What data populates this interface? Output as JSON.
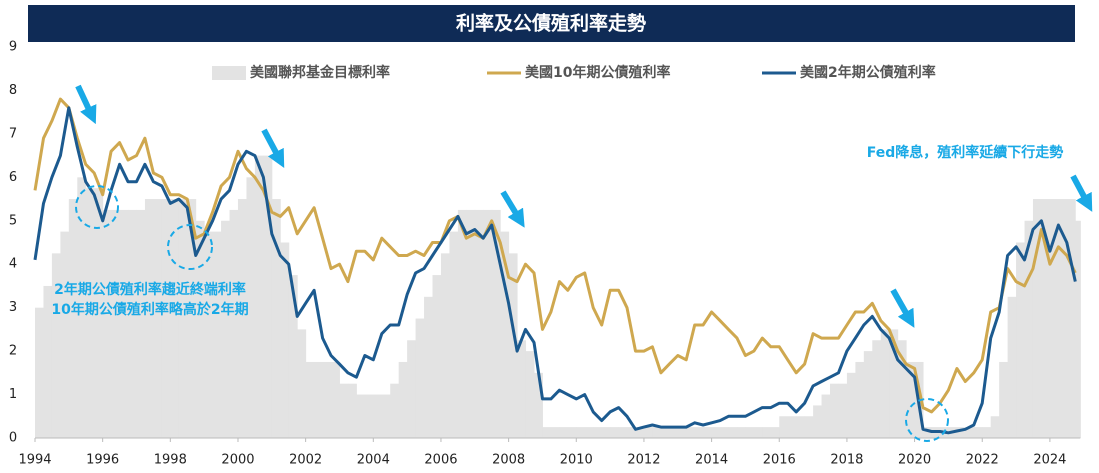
{
  "chart_data": {
    "type": "line",
    "title": "利率及公債殖利率走勢",
    "xlim": [
      1994,
      2024.9
    ],
    "xticks": [
      1994,
      1996,
      1998,
      2000,
      2002,
      2004,
      2006,
      2008,
      2010,
      2012,
      2014,
      2016,
      2018,
      2020,
      2022,
      2024
    ],
    "ylim": [
      0,
      9
    ],
    "yticks": [
      0,
      1,
      2,
      3,
      4,
      5,
      6,
      7,
      8,
      9
    ],
    "grid": false,
    "x": [
      1994,
      1994.25,
      1994.5,
      1994.75,
      1995,
      1995.25,
      1995.5,
      1995.75,
      1996,
      1996.25,
      1996.5,
      1996.75,
      1997,
      1997.25,
      1997.5,
      1997.75,
      1998,
      1998.25,
      1998.5,
      1998.75,
      1999,
      1999.25,
      1999.5,
      1999.75,
      2000,
      2000.25,
      2000.5,
      2000.75,
      2001,
      2001.25,
      2001.5,
      2001.75,
      2002,
      2002.25,
      2002.5,
      2002.75,
      2003,
      2003.25,
      2003.5,
      2003.75,
      2004,
      2004.25,
      2004.5,
      2004.75,
      2005,
      2005.25,
      2005.5,
      2005.75,
      2006,
      2006.25,
      2006.5,
      2006.75,
      2007,
      2007.25,
      2007.5,
      2007.75,
      2008,
      2008.25,
      2008.5,
      2008.75,
      2009,
      2009.25,
      2009.5,
      2009.75,
      2010,
      2010.25,
      2010.5,
      2010.75,
      2011,
      2011.25,
      2011.5,
      2011.75,
      2012,
      2012.25,
      2012.5,
      2012.75,
      2013,
      2013.25,
      2013.5,
      2013.75,
      2014,
      2014.25,
      2014.5,
      2014.75,
      2015,
      2015.25,
      2015.5,
      2015.75,
      2016,
      2016.25,
      2016.5,
      2016.75,
      2017,
      2017.25,
      2017.5,
      2017.75,
      2018,
      2018.25,
      2018.5,
      2018.75,
      2019,
      2019.25,
      2019.5,
      2019.75,
      2020,
      2020.25,
      2020.5,
      2020.75,
      2021,
      2021.25,
      2021.5,
      2021.75,
      2022,
      2022.25,
      2022.5,
      2022.75,
      2023,
      2023.25,
      2023.5,
      2023.75,
      2024,
      2024.25,
      2024.5,
      2024.75
    ],
    "series": [
      {
        "name": "美國聯邦基金目標利率",
        "style": "step-area",
        "color": "#e3e3e3",
        "values": [
          3.0,
          3.5,
          4.25,
          4.75,
          5.5,
          6.0,
          5.75,
          5.75,
          5.25,
          5.25,
          5.25,
          5.25,
          5.25,
          5.5,
          5.5,
          5.5,
          5.5,
          5.5,
          5.5,
          5.0,
          4.75,
          4.75,
          5.0,
          5.25,
          5.5,
          6.0,
          6.5,
          6.5,
          5.5,
          4.5,
          3.75,
          2.5,
          1.75,
          1.75,
          1.75,
          1.75,
          1.25,
          1.25,
          1.0,
          1.0,
          1.0,
          1.0,
          1.25,
          1.75,
          2.25,
          2.75,
          3.25,
          3.75,
          4.25,
          4.75,
          5.25,
          5.25,
          5.25,
          5.25,
          5.25,
          4.75,
          4.25,
          2.25,
          2.0,
          1.5,
          0.25,
          0.25,
          0.25,
          0.25,
          0.25,
          0.25,
          0.25,
          0.25,
          0.25,
          0.25,
          0.25,
          0.25,
          0.25,
          0.25,
          0.25,
          0.25,
          0.25,
          0.25,
          0.25,
          0.25,
          0.25,
          0.25,
          0.25,
          0.25,
          0.25,
          0.25,
          0.25,
          0.25,
          0.5,
          0.5,
          0.5,
          0.5,
          0.75,
          1.0,
          1.25,
          1.25,
          1.5,
          1.75,
          2.0,
          2.25,
          2.5,
          2.5,
          2.25,
          1.75,
          1.75,
          0.25,
          0.25,
          0.25,
          0.25,
          0.25,
          0.25,
          0.25,
          0.25,
          0.5,
          1.75,
          3.25,
          4.5,
          5.0,
          5.5,
          5.5,
          5.5,
          5.5,
          5.5,
          5.0
        ]
      },
      {
        "name": "美國10年期公債殖利率",
        "style": "line",
        "color": "#cfa84f",
        "values": [
          5.7,
          6.9,
          7.3,
          7.8,
          7.6,
          6.9,
          6.3,
          6.1,
          5.6,
          6.6,
          6.8,
          6.4,
          6.5,
          6.9,
          6.1,
          6.0,
          5.6,
          5.6,
          5.5,
          4.6,
          4.7,
          5.2,
          5.8,
          6.0,
          6.6,
          6.2,
          6.0,
          5.7,
          5.2,
          5.1,
          5.3,
          4.7,
          5.0,
          5.3,
          4.6,
          3.9,
          4.0,
          3.6,
          4.3,
          4.3,
          4.1,
          4.6,
          4.4,
          4.2,
          4.2,
          4.3,
          4.2,
          4.5,
          4.5,
          5.0,
          5.1,
          4.6,
          4.7,
          4.6,
          5.0,
          4.5,
          3.7,
          3.6,
          4.0,
          3.8,
          2.5,
          2.9,
          3.6,
          3.4,
          3.7,
          3.8,
          3.0,
          2.6,
          3.4,
          3.4,
          3.0,
          2.0,
          2.0,
          2.1,
          1.5,
          1.7,
          1.9,
          1.8,
          2.6,
          2.6,
          2.9,
          2.7,
          2.5,
          2.3,
          1.9,
          2.0,
          2.3,
          2.1,
          2.1,
          1.8,
          1.5,
          1.7,
          2.4,
          2.3,
          2.3,
          2.3,
          2.6,
          2.9,
          2.9,
          3.1,
          2.7,
          2.5,
          2.0,
          1.7,
          1.6,
          0.7,
          0.6,
          0.8,
          1.1,
          1.6,
          1.3,
          1.5,
          1.8,
          2.9,
          3.0,
          3.9,
          3.6,
          3.5,
          3.9,
          4.8,
          4.0,
          4.4,
          4.2,
          3.8
        ]
      },
      {
        "name": "美國2年期公債殖利率",
        "style": "line",
        "color": "#1c5a8f",
        "values": [
          4.1,
          5.4,
          6.0,
          6.5,
          7.6,
          6.7,
          5.9,
          5.6,
          5.0,
          5.7,
          6.3,
          5.9,
          5.9,
          6.3,
          5.9,
          5.8,
          5.4,
          5.5,
          5.3,
          4.2,
          4.6,
          5.0,
          5.5,
          5.7,
          6.3,
          6.6,
          6.5,
          6.0,
          4.7,
          4.2,
          4.0,
          2.8,
          3.1,
          3.4,
          2.3,
          1.9,
          1.7,
          1.5,
          1.4,
          1.9,
          1.8,
          2.4,
          2.6,
          2.6,
          3.3,
          3.8,
          3.9,
          4.2,
          4.5,
          4.8,
          5.1,
          4.7,
          4.8,
          4.6,
          4.9,
          4.0,
          3.1,
          2.0,
          2.5,
          2.2,
          0.9,
          0.9,
          1.1,
          1.0,
          0.9,
          1.0,
          0.6,
          0.4,
          0.6,
          0.7,
          0.5,
          0.2,
          0.25,
          0.3,
          0.25,
          0.25,
          0.25,
          0.25,
          0.35,
          0.3,
          0.35,
          0.4,
          0.5,
          0.5,
          0.5,
          0.6,
          0.7,
          0.7,
          0.8,
          0.8,
          0.6,
          0.8,
          1.2,
          1.3,
          1.4,
          1.5,
          2.0,
          2.3,
          2.6,
          2.8,
          2.5,
          2.3,
          1.8,
          1.6,
          1.4,
          0.2,
          0.15,
          0.15,
          0.12,
          0.16,
          0.2,
          0.3,
          0.8,
          2.3,
          2.9,
          4.2,
          4.4,
          4.1,
          4.8,
          5.0,
          4.3,
          4.9,
          4.5,
          3.6
        ]
      }
    ],
    "annotations": [
      "Fed降息，殖利率延續下行走勢",
      "2年期公債殖利率趨近終端利率",
      "10年期公債殖利率略高於2年期"
    ]
  }
}
